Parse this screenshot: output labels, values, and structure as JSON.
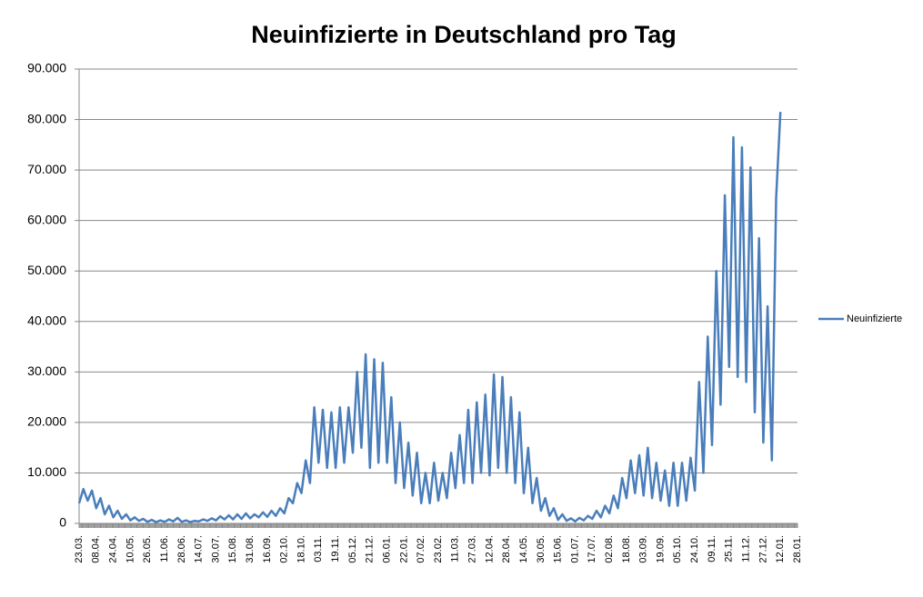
{
  "chart_data": {
    "type": "line",
    "title": "Neuinfizierte in Deutschland pro Tag",
    "categories": [
      "23.03.",
      null,
      null,
      null,
      "08.04.",
      null,
      null,
      null,
      "24.04.",
      null,
      null,
      null,
      "10.05.",
      null,
      null,
      null,
      "26.05.",
      null,
      null,
      null,
      "11.06.",
      null,
      null,
      null,
      "28.06.",
      null,
      null,
      null,
      "14.07.",
      null,
      null,
      null,
      "30.07.",
      null,
      null,
      null,
      "15.08.",
      null,
      null,
      null,
      "31.08.",
      null,
      null,
      null,
      "16.09.",
      null,
      null,
      null,
      "02.10.",
      null,
      null,
      null,
      "18.10.",
      null,
      null,
      null,
      "03.11.",
      null,
      null,
      null,
      "19.11.",
      null,
      null,
      null,
      "05.12.",
      null,
      null,
      null,
      "21.12.",
      null,
      null,
      null,
      "06.01.",
      null,
      null,
      null,
      "22.01.",
      null,
      null,
      null,
      "07.02.",
      null,
      null,
      null,
      "23.02.",
      null,
      null,
      null,
      "11.03.",
      null,
      null,
      null,
      "27.03.",
      null,
      null,
      null,
      "12.04.",
      null,
      null,
      null,
      "28.04.",
      null,
      null,
      null,
      "14.05.",
      null,
      null,
      null,
      "30.05.",
      null,
      null,
      null,
      "15.06.",
      null,
      null,
      null,
      "01.07.",
      null,
      null,
      null,
      "17.07.",
      null,
      null,
      null,
      "02.08.",
      null,
      null,
      null,
      "18.08.",
      null,
      null,
      null,
      "03.09.",
      null,
      null,
      null,
      "19.09.",
      null,
      null,
      null,
      "05.10.",
      null,
      null,
      null,
      "24.10.",
      null,
      null,
      null,
      "09.11.",
      null,
      null,
      null,
      "25.11.",
      null,
      null,
      null,
      "11.12.",
      null,
      null,
      null,
      "27.12.",
      null,
      null,
      null,
      "12.01.",
      null,
      null,
      null,
      "28.01."
    ],
    "series": [
      {
        "name": "Neuinfizierte",
        "color": "#4a7ebb",
        "values": [
          4000,
          6800,
          4500,
          6500,
          3000,
          5000,
          1800,
          3500,
          1200,
          2500,
          900,
          1800,
          600,
          1200,
          500,
          900,
          300,
          700,
          250,
          600,
          300,
          800,
          400,
          1100,
          300,
          600,
          250,
          500,
          400,
          800,
          500,
          1000,
          600,
          1400,
          800,
          1600,
          800,
          1800,
          900,
          2000,
          1000,
          1800,
          1200,
          2200,
          1300,
          2500,
          1500,
          3000,
          2000,
          5000,
          4000,
          8000,
          6000,
          12500,
          8000,
          23000,
          12000,
          22500,
          11000,
          22000,
          11000,
          23000,
          12000,
          23000,
          14000,
          30000,
          15000,
          33500,
          11000,
          32500,
          12000,
          31800,
          12000,
          25000,
          8000,
          20000,
          7000,
          16000,
          5500,
          14000,
          4000,
          10000,
          4000,
          12000,
          4500,
          10000,
          5000,
          14000,
          7000,
          17500,
          8000,
          22500,
          8000,
          24000,
          10000,
          25500,
          9500,
          29500,
          11000,
          29000,
          10000,
          25000,
          8000,
          22000,
          6000,
          15000,
          4000,
          9000,
          2500,
          5000,
          1500,
          3000,
          700,
          1800,
          500,
          1000,
          400,
          1100,
          600,
          1500,
          900,
          2500,
          1200,
          3500,
          2000,
          5500,
          3000,
          9000,
          5000,
          12500,
          6000,
          13500,
          5500,
          15000,
          5000,
          12000,
          4500,
          10500,
          3500,
          12000,
          3500,
          12000,
          4500,
          13000,
          6500,
          28000,
          10000,
          37000,
          15500,
          50000,
          23500,
          65000,
          31000,
          76500,
          29000,
          74500,
          28000,
          70500,
          22000,
          56500,
          16000,
          43000,
          12500,
          64500,
          81500,
          null,
          null,
          null,
          null
        ]
      }
    ],
    "ylim": [
      0,
      90000
    ],
    "yticks": [
      0,
      {
        "value": 10000,
        "label": "10.000"
      },
      {
        "value": 20000,
        "label": "20.000"
      },
      {
        "value": 30000,
        "label": "30.000"
      },
      {
        "value": 40000,
        "label": "40.000"
      },
      {
        "value": 50000,
        "label": "50.000"
      },
      {
        "value": 60000,
        "label": "60.000"
      },
      {
        "value": 70000,
        "label": "70.000"
      },
      {
        "value": 80000,
        "label": "80.000"
      },
      {
        "value": 90000,
        "label": "90.000"
      }
    ],
    "grid": true,
    "legend": "right"
  }
}
